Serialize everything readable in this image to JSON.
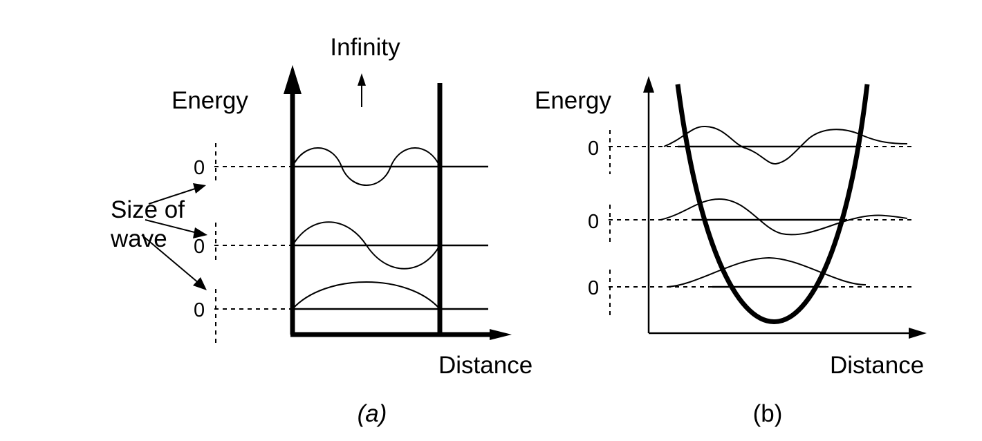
{
  "panel_a": {
    "infinity_label": "Infinity",
    "energy_label": "Energy",
    "distance_label": "Distance",
    "caption": "(a)",
    "zero_labels": [
      "0",
      "0",
      "0"
    ],
    "wave_size_label": [
      "Size of",
      "wave"
    ]
  },
  "panel_b": {
    "energy_label": "Energy",
    "distance_label": "Distance",
    "caption": "(b)",
    "zero_labels": [
      "0",
      "0",
      "0"
    ]
  }
}
